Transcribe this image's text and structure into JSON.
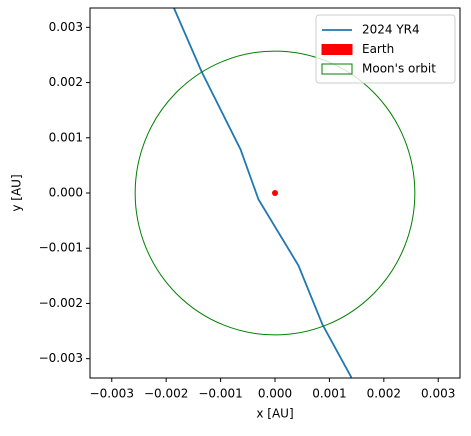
{
  "chart_data": {
    "type": "line",
    "xlabel": "x [AU]",
    "ylabel": "y [AU]",
    "xlim": [
      -0.0034,
      0.0034
    ],
    "ylim": [
      -0.00335,
      0.00335
    ],
    "xticks": [
      {
        "value": -0.003,
        "label": "−0.003"
      },
      {
        "value": -0.002,
        "label": "−0.002"
      },
      {
        "value": -0.001,
        "label": "−0.001"
      },
      {
        "value": 0,
        "label": "0.000"
      },
      0.001,
      0.002,
      0.003
    ],
    "yticks": [
      {
        "value": -0.003,
        "label": "−0.003"
      },
      {
        "value": -0.002,
        "label": "−0.002"
      },
      {
        "value": -0.001,
        "label": "−0.001"
      },
      {
        "value": 0,
        "label": "0.000"
      },
      0.001,
      0.002,
      0.003
    ],
    "legend": "upper right",
    "series": [
      {
        "name": "2024 YR4",
        "kind": "line",
        "color": "#1f77b4",
        "x": [
          -0.001862,
          -0.00135,
          -0.000633,
          -0.000303,
          0.000431,
          0.000872,
          0.001404
        ],
        "values": [
          0.00336,
          0.0022,
          0.000788,
          -0.000118,
          -0.001313,
          -0.002382,
          -0.00334
        ]
      },
      {
        "name": "Earth",
        "kind": "point",
        "color": "#ff0000",
        "x": [
          0
        ],
        "values": [
          0
        ]
      },
      {
        "name": "Moon's orbit",
        "kind": "circle",
        "color": "#008000",
        "x": [
          0
        ],
        "values": [
          0
        ],
        "radius": 0.00257
      }
    ]
  }
}
